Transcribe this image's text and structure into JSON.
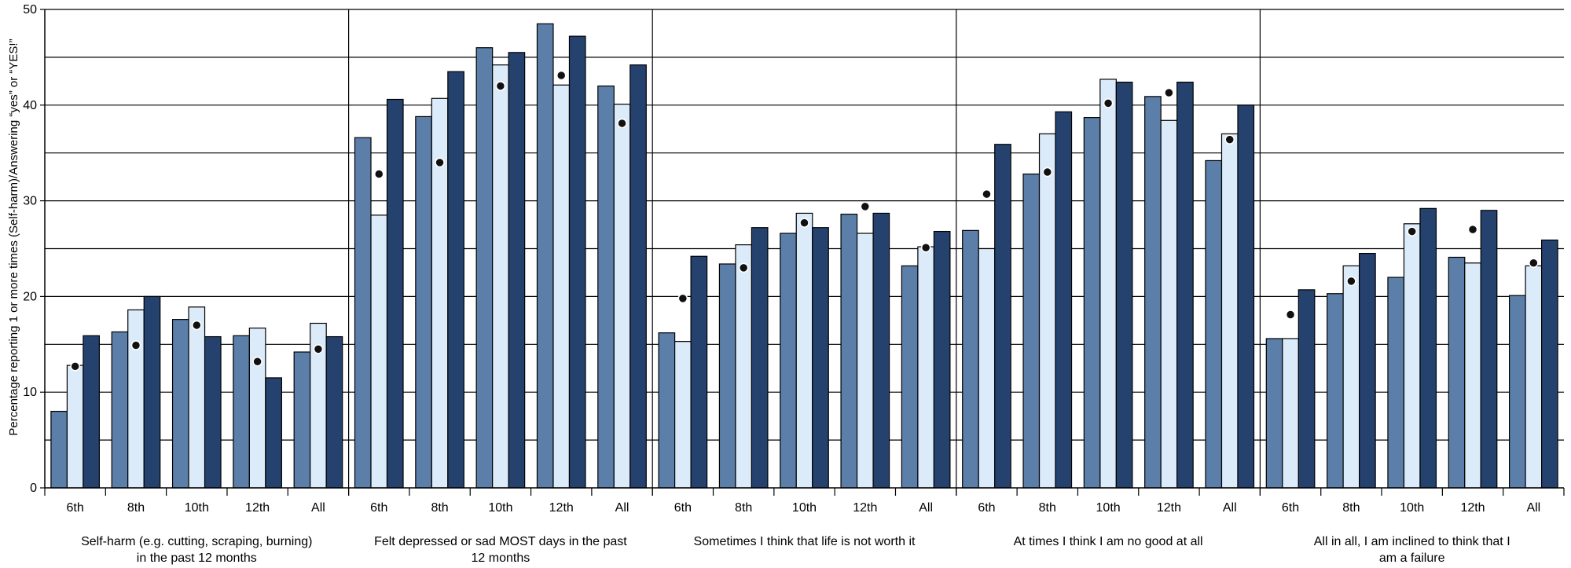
{
  "chart_data": {
    "type": "bar",
    "ylabel": "Percentage reporting 1 or more times (Self-harm)/Answering “yes” or “YES!”",
    "ylim": [
      0,
      50
    ],
    "yticks": [
      "0",
      "10",
      "20",
      "30",
      "40",
      "50"
    ],
    "grid": true,
    "categories": [
      "6th",
      "8th",
      "10th",
      "12th",
      "All"
    ],
    "groups": [
      {
        "label_lines": [
          "Self-harm (e.g. cutting, scraping, burning)",
          "in the past 12 months"
        ],
        "bars": [
          [
            8,
            12.8,
            15.9
          ],
          [
            16.3,
            18.6,
            20
          ],
          [
            17.6,
            18.9,
            15.8
          ],
          [
            15.9,
            16.7,
            11.5
          ],
          [
            14.2,
            17.2,
            15.8
          ]
        ],
        "dots": [
          12.7,
          14.9,
          17,
          13.2,
          14.5
        ]
      },
      {
        "label_lines": [
          "Felt depressed or sad MOST days in the past",
          "12 months"
        ],
        "bars": [
          [
            36.6,
            28.5,
            40.6
          ],
          [
            38.8,
            40.7,
            43.5
          ],
          [
            46,
            44.2,
            45.5
          ],
          [
            48.5,
            42.1,
            47.2
          ],
          [
            42,
            40.1,
            44.2
          ]
        ],
        "dots": [
          32.8,
          34,
          42,
          43.1,
          38.1
        ]
      },
      {
        "label_lines": [
          "Sometimes I think that life is not worth it"
        ],
        "bars": [
          [
            16.2,
            15.3,
            24.2
          ],
          [
            23.4,
            25.4,
            27.2
          ],
          [
            26.6,
            28.7,
            27.2
          ],
          [
            28.6,
            26.6,
            28.7
          ],
          [
            23.2,
            25.2,
            26.8
          ]
        ],
        "dots": [
          19.8,
          23,
          27.7,
          29.4,
          25.1
        ]
      },
      {
        "label_lines": [
          "At times I think I am no good at all"
        ],
        "bars": [
          [
            26.9,
            25,
            35.9
          ],
          [
            32.8,
            37,
            39.3
          ],
          [
            38.7,
            42.7,
            42.4
          ],
          [
            40.9,
            38.4,
            42.4
          ],
          [
            34.2,
            37,
            40
          ]
        ],
        "dots": [
          30.7,
          33,
          40.2,
          41.3,
          36.4
        ]
      },
      {
        "label_lines": [
          "All in all, I am inclined to think that I",
          "am a failure"
        ],
        "bars": [
          [
            15.6,
            15.6,
            20.7
          ],
          [
            20.3,
            23.2,
            24.5
          ],
          [
            22,
            27.6,
            29.2
          ],
          [
            24.1,
            23.5,
            29
          ],
          [
            20.1,
            23.2,
            25.9
          ]
        ],
        "dots": [
          18.1,
          21.6,
          26.8,
          27,
          23.5
        ]
      }
    ],
    "colors": {
      "series1": "#5b7fa8",
      "series2": "#dcebfa",
      "series3": "#25426e",
      "dot": "#111111",
      "grid": "#000000"
    }
  }
}
